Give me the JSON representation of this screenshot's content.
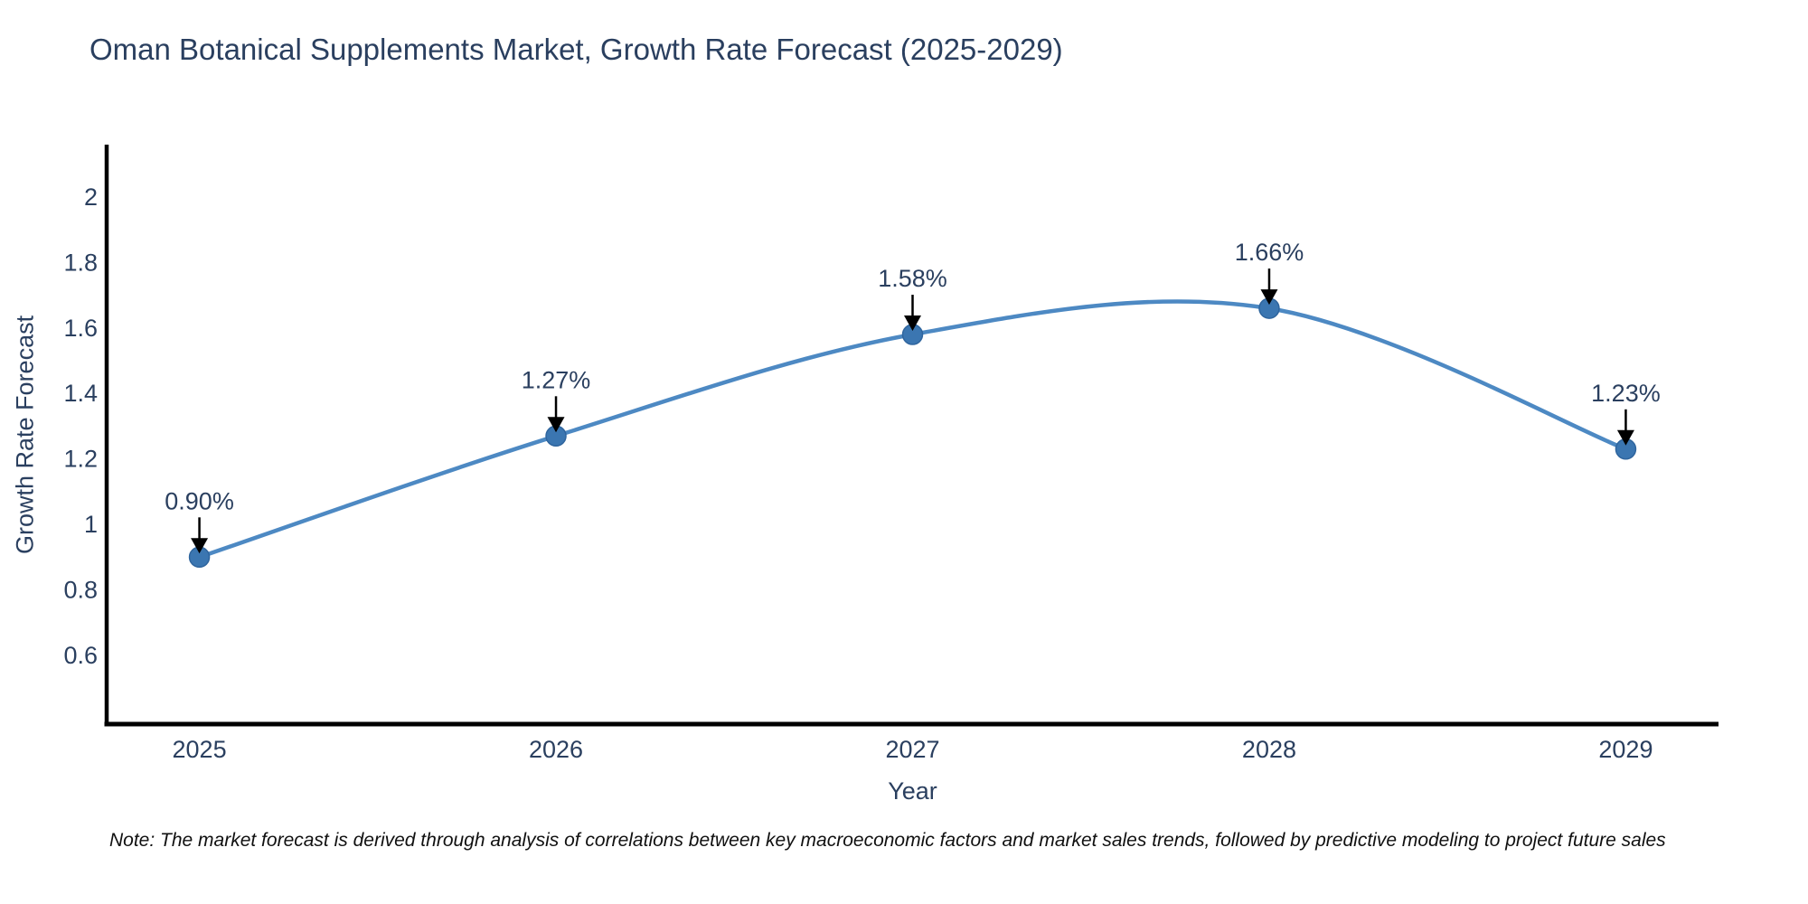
{
  "note": "Note: The market forecast is derived through analysis of correlations between key macroeconomic factors and market sales trends, followed by predictive modeling to project future sales",
  "colors": {
    "background": "#ffffff",
    "text": "#2a3f5f",
    "axis_line": "#000000",
    "series_line": "#4d89c3",
    "marker_fill": "#3b76b1",
    "marker_edge": "#2f659e",
    "annotation_text": "#2a3f5f",
    "annotation_arrow": "#000000",
    "note_text": "#101010"
  },
  "chart_data": {
    "type": "line",
    "title": "Oman Botanical Supplements Market, Growth Rate Forecast (2025-2029)",
    "xlabel": "Year",
    "ylabel": "Growth Rate Forecast",
    "x": [
      2025,
      2026,
      2027,
      2028,
      2029
    ],
    "series": [
      {
        "name": "Growth Rate Forecast",
        "values": [
          0.9,
          1.27,
          1.58,
          1.66,
          1.23
        ],
        "point_labels": [
          "0.90%",
          "1.27%",
          "1.58%",
          "1.66%",
          "1.23%"
        ]
      }
    ],
    "xtick_labels": [
      "2025",
      "2026",
      "2027",
      "2028",
      "2029"
    ],
    "ytick_values": [
      0.6,
      0.8,
      1,
      1.2,
      1.4,
      1.6,
      1.8,
      2
    ],
    "ytick_labels": [
      "0.6",
      "0.8",
      "1",
      "1.2",
      "1.4",
      "1.6",
      "1.8",
      "2"
    ],
    "xlim": [
      2024.74,
      2029.26
    ],
    "ylim": [
      0.39,
      2.16
    ],
    "line_shape": "spline",
    "markers": true,
    "grid": false,
    "legend_position": "none",
    "annotations_have_arrows": true
  }
}
